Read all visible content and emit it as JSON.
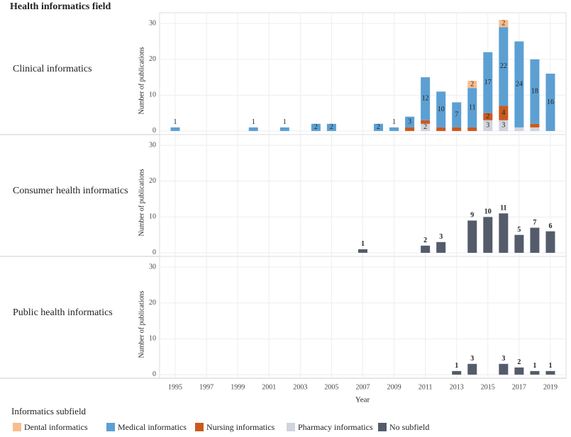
{
  "title": "Health informatics field",
  "xlabel": "Year",
  "legend_title": "Informatics subfield",
  "chart_data": [
    {
      "type": "bar",
      "title": "Clinical informatics",
      "ylabel": "Number of publications",
      "x": [
        1995,
        1996,
        1997,
        1998,
        1999,
        2000,
        2001,
        2002,
        2003,
        2004,
        2005,
        2006,
        2007,
        2008,
        2009,
        2010,
        2011,
        2012,
        2013,
        2014,
        2015,
        2016,
        2017,
        2018,
        2019
      ],
      "xlim": [
        1994,
        2020
      ],
      "xticks": [
        1995,
        1997,
        1999,
        2001,
        2003,
        2005,
        2007,
        2009,
        2011,
        2013,
        2015,
        2017,
        2019
      ],
      "ylim": [
        -1,
        33
      ],
      "yticks": [
        0,
        10,
        20,
        30
      ],
      "grid": true,
      "series": [
        {
          "name": "Dental informatics",
          "color": "#f7bd8c",
          "values": [
            0,
            0,
            0,
            0,
            0,
            0,
            0,
            0,
            0,
            0,
            0,
            0,
            0,
            0,
            0,
            0,
            0,
            0,
            0,
            2,
            0,
            2,
            0,
            0,
            0
          ]
        },
        {
          "name": "Medical informatics",
          "color": "#5ca0d3",
          "values": [
            1,
            0,
            0,
            0,
            0,
            1,
            0,
            1,
            0,
            2,
            2,
            0,
            0,
            2,
            1,
            3,
            12,
            10,
            7,
            11,
            17,
            22,
            24,
            18,
            16
          ]
        },
        {
          "name": "Nursing informatics",
          "color": "#c95a1f",
          "values": [
            0,
            0,
            0,
            0,
            0,
            0,
            0,
            0,
            0,
            0,
            0,
            0,
            0,
            0,
            0,
            1,
            1,
            1,
            1,
            1,
            2,
            4,
            0,
            1,
            0
          ]
        },
        {
          "name": "Pharmacy informatics",
          "color": "#cfd4de",
          "values": [
            0,
            0,
            0,
            0,
            0,
            0,
            0,
            0,
            0,
            0,
            0,
            0,
            0,
            0,
            0,
            0,
            2,
            0,
            0,
            0,
            3,
            3,
            1,
            1,
            0
          ]
        }
      ]
    },
    {
      "type": "bar",
      "title": "Consumer health informatics",
      "ylabel": "Number of publications",
      "x": [
        1995,
        1996,
        1997,
        1998,
        1999,
        2000,
        2001,
        2002,
        2003,
        2004,
        2005,
        2006,
        2007,
        2008,
        2009,
        2010,
        2011,
        2012,
        2013,
        2014,
        2015,
        2016,
        2017,
        2018,
        2019
      ],
      "xlim": [
        1994,
        2020
      ],
      "xticks": [
        1995,
        1997,
        1999,
        2001,
        2003,
        2005,
        2007,
        2009,
        2011,
        2013,
        2015,
        2017,
        2019
      ],
      "ylim": [
        -1,
        33
      ],
      "yticks": [
        0,
        10,
        20,
        30
      ],
      "grid": true,
      "series": [
        {
          "name": "No subfield",
          "color": "#545c6b",
          "values": [
            0,
            0,
            0,
            0,
            0,
            0,
            0,
            0,
            0,
            0,
            0,
            0,
            1,
            0,
            0,
            0,
            2,
            3,
            0,
            9,
            10,
            11,
            5,
            7,
            6
          ]
        }
      ]
    },
    {
      "type": "bar",
      "title": "Public health informatics",
      "ylabel": "Number of publications",
      "x": [
        1995,
        1996,
        1997,
        1998,
        1999,
        2000,
        2001,
        2002,
        2003,
        2004,
        2005,
        2006,
        2007,
        2008,
        2009,
        2010,
        2011,
        2012,
        2013,
        2014,
        2015,
        2016,
        2017,
        2018,
        2019
      ],
      "xlim": [
        1994,
        2020
      ],
      "xticks": [
        1995,
        1997,
        1999,
        2001,
        2003,
        2005,
        2007,
        2009,
        2011,
        2013,
        2015,
        2017,
        2019
      ],
      "ylim": [
        -1,
        33
      ],
      "yticks": [
        0,
        10,
        20,
        30
      ],
      "grid": true,
      "series": [
        {
          "name": "No subfield",
          "color": "#545c6b",
          "values": [
            0,
            0,
            0,
            0,
            0,
            0,
            0,
            0,
            0,
            0,
            0,
            0,
            0,
            0,
            0,
            0,
            0,
            0,
            1,
            3,
            0,
            3,
            2,
            1,
            1
          ]
        }
      ]
    }
  ]
}
